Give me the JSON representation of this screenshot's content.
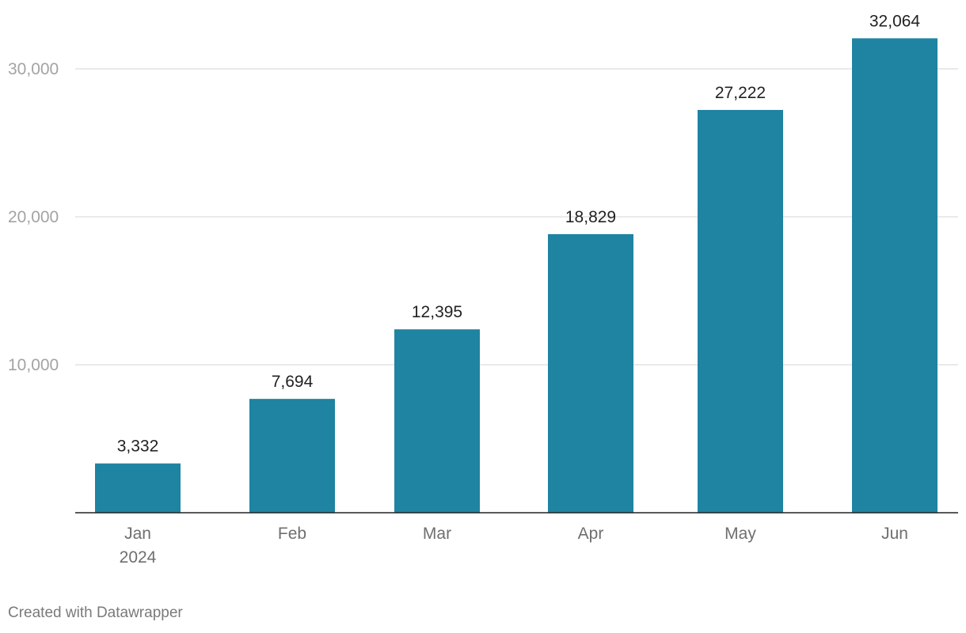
{
  "chart_data": {
    "type": "bar",
    "categories": [
      "Jan",
      "Feb",
      "Mar",
      "Apr",
      "May",
      "Jun"
    ],
    "category_sublabels": [
      "2024",
      "",
      "",
      "",
      "",
      ""
    ],
    "values": [
      3332,
      7694,
      12395,
      18829,
      27222,
      32064
    ],
    "value_labels": [
      "3,332",
      "7,694",
      "12,395",
      "18,829",
      "27,222",
      "32,064"
    ],
    "ylim": [
      0,
      32064
    ],
    "yticks": [
      10000,
      20000,
      30000
    ],
    "ytick_labels": [
      "10,000",
      "20,000",
      "30,000"
    ],
    "grid": true,
    "colors": {
      "bar": "#1f83a2"
    }
  },
  "footer": {
    "credit": "Created with Datawrapper"
  }
}
